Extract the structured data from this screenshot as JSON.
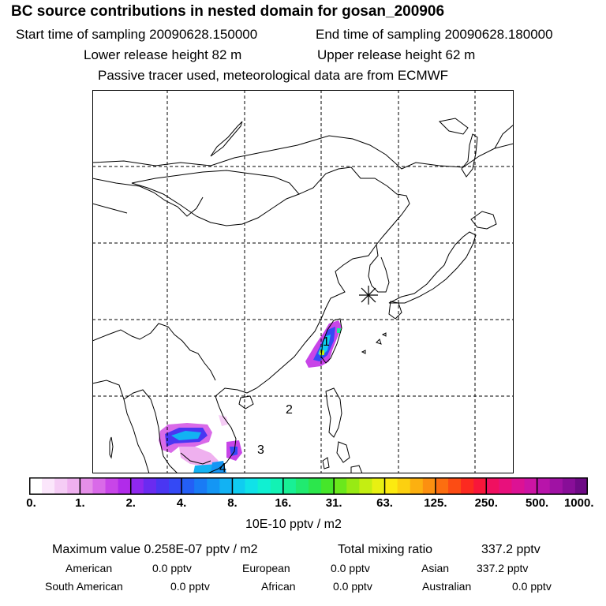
{
  "header": {
    "title": "BC  source contributions in nested domain for gosan_200906",
    "start_label": "Start time of sampling 20090628.150000",
    "end_label": "End time of sampling 20090628.180000",
    "lower_release": "Lower release height   82 m",
    "upper_release": "Upper release height   62 m",
    "tracer_note": "Passive tracer used, meteorological data are from ECMWF"
  },
  "map": {
    "receptor_marker": "receptor-star",
    "region_labels": [
      "1",
      "2",
      "3",
      "4"
    ],
    "colors": {
      "coast": "#000000",
      "grid": "#000000"
    }
  },
  "colorbar": {
    "tick_labels": [
      "0.",
      "1.",
      "2.",
      "4.",
      "8.",
      "16.",
      "31.",
      "63.",
      "125.",
      "250.",
      "500.",
      "1000."
    ],
    "colors": [
      "#ffffff",
      "#fbe6fb",
      "#f5ccf5",
      "#efb0ef",
      "#e58fe8",
      "#d96ae8",
      "#c845e8",
      "#b12bea",
      "#8f28ee",
      "#6a2bf0",
      "#4a36f2",
      "#3449f5",
      "#245ff5",
      "#197bf5",
      "#1496f4",
      "#12b2f3",
      "#10ccf0",
      "#10e2e8",
      "#10f0d2",
      "#12f2b4",
      "#18f095",
      "#20ea70",
      "#2ce64c",
      "#46e62a",
      "#6ae81c",
      "#98ea14",
      "#c4ee12",
      "#e8f012",
      "#fcea10",
      "#fcd010",
      "#fcb010",
      "#fc9010",
      "#fc6e10",
      "#fc4c14",
      "#fc2a20",
      "#f8163a",
      "#f01060",
      "#e8107c",
      "#dc1294",
      "#cc14a4",
      "#b814aa",
      "#a012a4",
      "#880e98",
      "#6e0a86"
    ],
    "units": "10E-10 pptv / m2"
  },
  "stats": {
    "max_label": "Maximum value  0.258E-07 pptv / m2",
    "total_label": "Total mixing ratio",
    "total_value": "337.2 pptv",
    "american_label": "American",
    "american_value": "0.0 pptv",
    "european_label": "European",
    "european_value": "0.0 pptv",
    "asian_label": "Asian",
    "asian_value": "337.2 pptv",
    "south_american_label": "South American",
    "south_american_value": "0.0 pptv",
    "african_label": "African",
    "african_value": "0.0 pptv",
    "australian_label": "Australian",
    "australian_value": "0.0 pptv"
  }
}
